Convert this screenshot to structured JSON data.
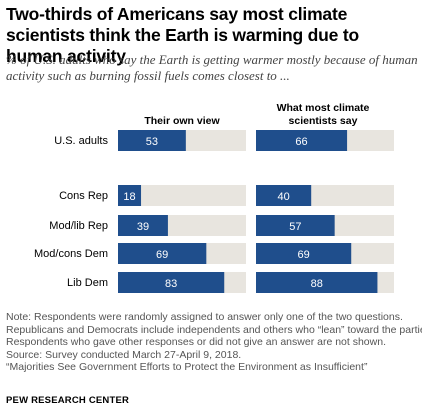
{
  "title": "Two-thirds of Americans say most climate scientists think the Earth is warming due to human activity",
  "subtitle": "% of U.S. adults who say the Earth is getting warmer mostly because of human activity such as burning fossil fuels comes closest to ...",
  "panels": {
    "left_title": "Their own view",
    "right_title_line1": "What most climate",
    "right_title_line2": "scientists say"
  },
  "colors": {
    "bar": "#1f4e8c",
    "track": "#e8e5df",
    "label": "#ffffff"
  },
  "chart_data": {
    "type": "bar",
    "orientation": "horizontal",
    "categories": [
      "U.S. adults",
      "Cons Rep",
      "Mod/lib Rep",
      "Mod/cons Dem",
      "Lib Dem"
    ],
    "series": [
      {
        "name": "Their own view",
        "values": [
          53,
          18,
          39,
          69,
          83
        ]
      },
      {
        "name": "What most climate scientists say",
        "values": [
          66,
          40,
          57,
          69,
          88
        ]
      }
    ],
    "xlim": [
      0,
      100
    ]
  },
  "notes": {
    "line1": "Note: Respondents were randomly assigned to answer only one of the two questions.",
    "line2": "Republicans and Democrats include independents and others who “lean” toward the parties.",
    "line3": "Respondents who gave other responses or did not give an answer are not shown.",
    "line4": "Source: Survey conducted March 27-April 9, 2018.",
    "line5": "“Majorities See Government Efforts to Protect the Environment as Insufficient”"
  },
  "source_org": "PEW RESEARCH CENTER"
}
